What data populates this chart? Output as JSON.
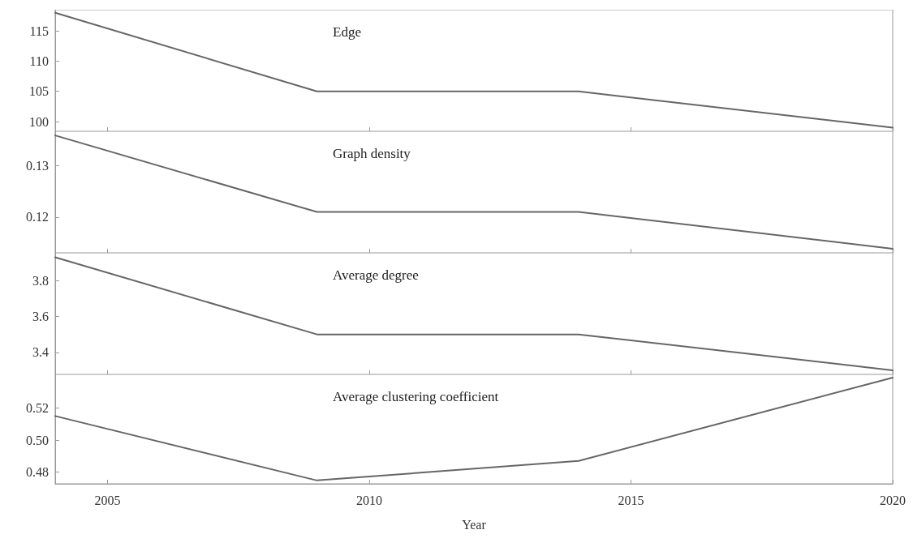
{
  "chart_data": [
    {
      "type": "line",
      "title": "Edge",
      "x": [
        2004,
        2009,
        2014,
        2020
      ],
      "values": [
        118,
        105,
        105,
        99
      ],
      "color": "#666666",
      "xlim": [
        2004,
        2020
      ],
      "xticks": [
        2005,
        2010,
        2015,
        2020
      ],
      "ylim": [
        98.4,
        118.5
      ],
      "yticks": [
        100,
        105,
        110,
        115
      ],
      "tick_labels": "y",
      "grid": false,
      "marker": "none",
      "line_style": "solid"
    },
    {
      "type": "line",
      "title": "Graph density",
      "x": [
        2004,
        2009,
        2014,
        2020
      ],
      "values": [
        0.1358,
        0.121,
        0.121,
        0.1139
      ],
      "color": "#666666",
      "xlim": [
        2004,
        2020
      ],
      "xticks": [
        2005,
        2010,
        2015,
        2020
      ],
      "ylim": [
        0.1131,
        0.1366
      ],
      "yticks": [
        0.12,
        0.13
      ],
      "tick_labels": "y",
      "grid": false,
      "marker": "none",
      "line_style": "solid"
    },
    {
      "type": "line",
      "title": "Average degree",
      "x": [
        2004,
        2009,
        2014,
        2020
      ],
      "values": [
        3.93,
        3.5,
        3.5,
        3.3
      ],
      "color": "#666666",
      "xlim": [
        2004,
        2020
      ],
      "xticks": [
        2005,
        2010,
        2015,
        2020
      ],
      "ylim": [
        3.277,
        3.955
      ],
      "yticks": [
        3.4,
        3.6,
        3.8
      ],
      "tick_labels": "y",
      "grid": false,
      "marker": "none",
      "line_style": "solid"
    },
    {
      "type": "line",
      "title": "Average clustering coefficient",
      "xlabel": "Year",
      "x": [
        2004,
        2009,
        2014,
        2020
      ],
      "values": [
        0.515,
        0.4748,
        0.487,
        0.539
      ],
      "color": "#666666",
      "xlim": [
        2004,
        2020
      ],
      "xticks": [
        2005,
        2010,
        2015,
        2020
      ],
      "ylim": [
        0.4727,
        0.541
      ],
      "yticks": [
        0.48,
        {
          "value": 0.5,
          "label": "0.50"
        },
        0.52
      ],
      "grid": false,
      "marker": "none",
      "line_style": "solid"
    }
  ]
}
